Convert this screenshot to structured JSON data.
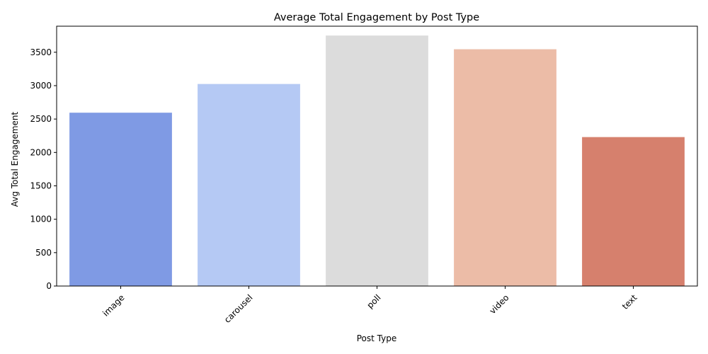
{
  "chart_data": {
    "type": "bar",
    "title": "Average Total Engagement by Post Type",
    "xlabel": "Post Type",
    "ylabel": "Avg Total Engagement",
    "categories": [
      "image",
      "carousel",
      "poll",
      "video",
      "text"
    ],
    "values": [
      2595,
      3025,
      3750,
      3545,
      2230
    ],
    "colors": [
      "#7f9ae4",
      "#b5c9f4",
      "#dcdcdc",
      "#ecbca7",
      "#d6806d"
    ],
    "ylim": [
      0,
      3890
    ],
    "yticks": [
      0,
      500,
      1000,
      1500,
      2000,
      2500,
      3000,
      3500
    ],
    "grid": false,
    "legend": "none"
  }
}
